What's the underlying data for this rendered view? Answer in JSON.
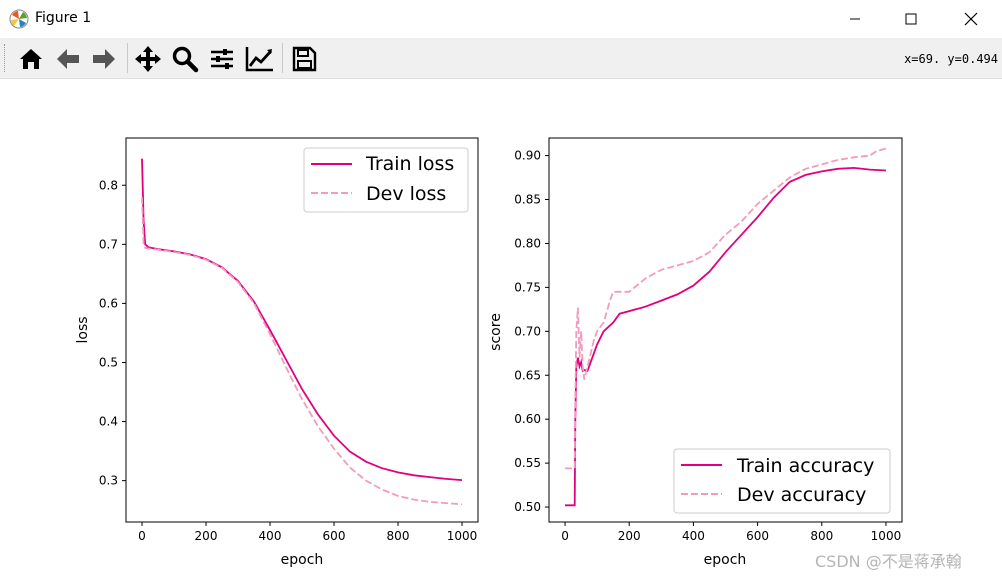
{
  "window": {
    "title": "Figure 1",
    "buttons": [
      "minimize",
      "maximize",
      "close"
    ]
  },
  "toolbar": {
    "tools": [
      {
        "name": "home-icon"
      },
      {
        "name": "back-arrow-icon"
      },
      {
        "name": "forward-arrow-icon"
      },
      {
        "name": "pan-icon"
      },
      {
        "name": "zoom-icon"
      },
      {
        "name": "configure-subplots-icon"
      },
      {
        "name": "edit-axis-icon"
      },
      {
        "name": "save-icon"
      }
    ],
    "coords": "x=69. y=0.494"
  },
  "watermark": "CSDN @不是蒋承翰",
  "colors": {
    "train": "#e0007f",
    "dev": "#f29bbd"
  },
  "chart_data": [
    {
      "type": "line",
      "xlabel": "epoch",
      "ylabel": "loss",
      "xlim": [
        -50,
        1050
      ],
      "ylim": [
        0.23,
        0.88
      ],
      "xticks": [
        0,
        200,
        400,
        600,
        800,
        1000
      ],
      "yticks": [
        0.3,
        0.4,
        0.5,
        0.6,
        0.7,
        0.8
      ],
      "legend": "upper right",
      "series": [
        {
          "name": "Train loss",
          "style": "solid",
          "x": [
            0,
            5,
            10,
            20,
            50,
            100,
            150,
            200,
            250,
            300,
            350,
            400,
            450,
            500,
            550,
            600,
            650,
            700,
            750,
            800,
            850,
            900,
            950,
            1000
          ],
          "y": [
            0.845,
            0.74,
            0.7,
            0.695,
            0.692,
            0.688,
            0.683,
            0.675,
            0.661,
            0.638,
            0.603,
            0.555,
            0.505,
            0.455,
            0.412,
            0.376,
            0.349,
            0.332,
            0.321,
            0.314,
            0.309,
            0.306,
            0.303,
            0.301
          ]
        },
        {
          "name": "Dev loss",
          "style": "dashed",
          "x": [
            0,
            5,
            10,
            20,
            50,
            100,
            150,
            200,
            250,
            300,
            350,
            400,
            450,
            500,
            550,
            600,
            650,
            700,
            750,
            800,
            850,
            900,
            950,
            1000
          ],
          "y": [
            0.78,
            0.7,
            0.694,
            0.693,
            0.691,
            0.687,
            0.682,
            0.674,
            0.66,
            0.636,
            0.6,
            0.548,
            0.492,
            0.438,
            0.392,
            0.354,
            0.322,
            0.3,
            0.285,
            0.274,
            0.268,
            0.264,
            0.262,
            0.26
          ]
        }
      ]
    },
    {
      "type": "line",
      "xlabel": "epoch",
      "ylabel": "score",
      "xlim": [
        -50,
        1050
      ],
      "ylim": [
        0.483,
        0.92
      ],
      "xticks": [
        0,
        200,
        400,
        600,
        800,
        1000
      ],
      "yticks": [
        0.5,
        0.55,
        0.6,
        0.65,
        0.7,
        0.75,
        0.8,
        0.85,
        0.9
      ],
      "legend": "lower right",
      "series": [
        {
          "name": "Train accuracy",
          "style": "solid",
          "x": [
            0,
            30,
            32,
            35,
            40,
            45,
            50,
            55,
            60,
            70,
            80,
            90,
            100,
            120,
            150,
            170,
            200,
            250,
            300,
            350,
            400,
            450,
            500,
            550,
            600,
            650,
            700,
            750,
            800,
            850,
            900,
            950,
            1000
          ],
          "y": [
            0.502,
            0.502,
            0.6,
            0.66,
            0.67,
            0.66,
            0.665,
            0.655,
            0.656,
            0.655,
            0.665,
            0.675,
            0.685,
            0.7,
            0.71,
            0.72,
            0.723,
            0.728,
            0.735,
            0.742,
            0.752,
            0.768,
            0.79,
            0.81,
            0.83,
            0.852,
            0.87,
            0.878,
            0.882,
            0.885,
            0.886,
            0.884,
            0.883
          ]
        },
        {
          "name": "Dev accuracy",
          "style": "dashed",
          "x": [
            0,
            30,
            32,
            35,
            40,
            45,
            50,
            55,
            60,
            70,
            80,
            90,
            100,
            120,
            140,
            150,
            200,
            250,
            300,
            350,
            400,
            450,
            500,
            550,
            600,
            650,
            700,
            750,
            800,
            850,
            900,
            950,
            970,
            1000
          ],
          "y": [
            0.544,
            0.544,
            0.62,
            0.7,
            0.727,
            0.67,
            0.7,
            0.66,
            0.645,
            0.66,
            0.675,
            0.69,
            0.7,
            0.71,
            0.735,
            0.745,
            0.745,
            0.76,
            0.77,
            0.775,
            0.78,
            0.79,
            0.81,
            0.825,
            0.845,
            0.86,
            0.875,
            0.885,
            0.89,
            0.895,
            0.898,
            0.9,
            0.905,
            0.908
          ]
        }
      ]
    }
  ]
}
